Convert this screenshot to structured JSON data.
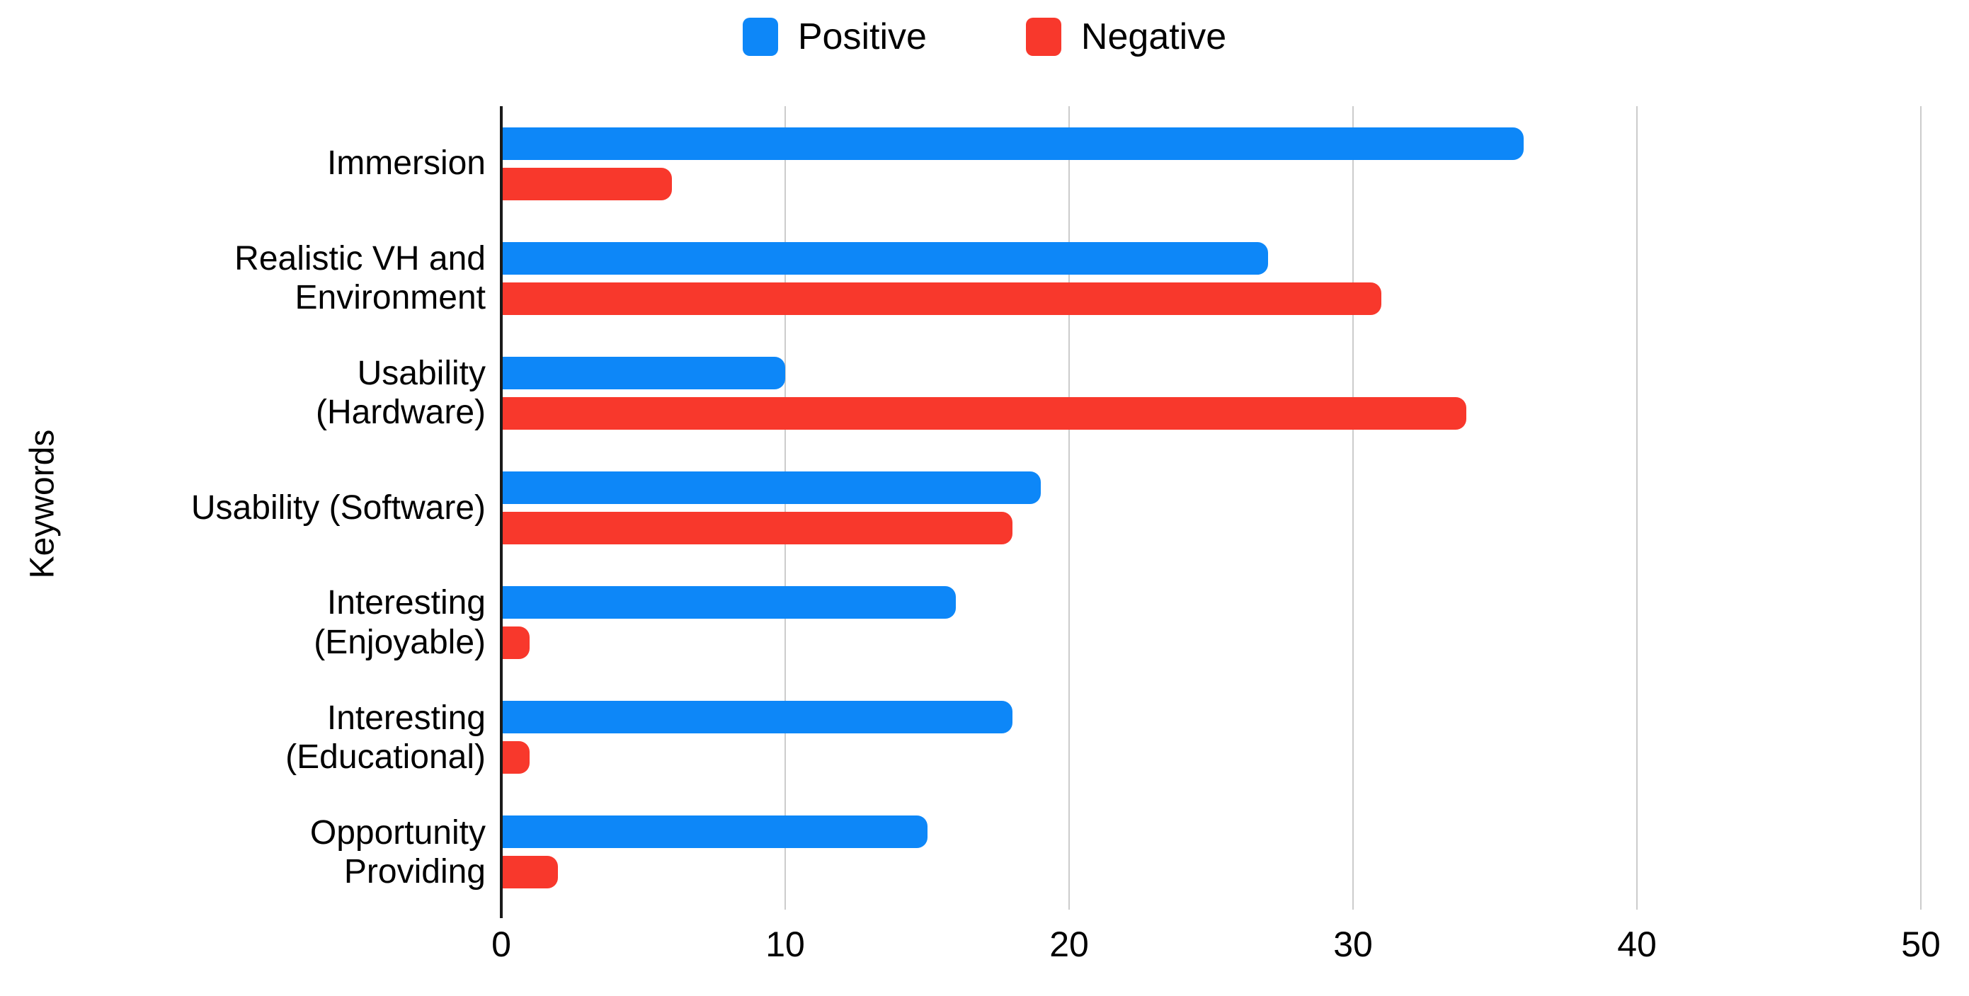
{
  "figure": {
    "background": "#ffffff",
    "text_color": "#000000",
    "axis_color": "#1a1a1a",
    "gridline_color": "#cccccc"
  },
  "chart_data": {
    "type": "bar",
    "orientation": "horizontal",
    "title": "",
    "xlabel": "",
    "ylabel": "Keywords",
    "xlim": [
      0,
      50
    ],
    "xticks": [
      0,
      10,
      20,
      30,
      40,
      50
    ],
    "grid": "vertical gridlines on",
    "legend_position": "top-center",
    "categories": [
      "Immersion",
      "Realistic VH and\nEnvironment",
      "Usability\n(Hardware)",
      "Usability (Software)",
      "Interesting\n(Enjoyable)",
      "Interesting\n(Educational)",
      "Opportunity\nProviding"
    ],
    "series": [
      {
        "name": "Positive",
        "color": "#0d87f8",
        "values": [
          36,
          27,
          10,
          19,
          16,
          18,
          15
        ]
      },
      {
        "name": "Negative",
        "color": "#f8382c",
        "values": [
          6,
          31,
          34,
          18,
          1,
          1,
          2
        ]
      }
    ]
  }
}
